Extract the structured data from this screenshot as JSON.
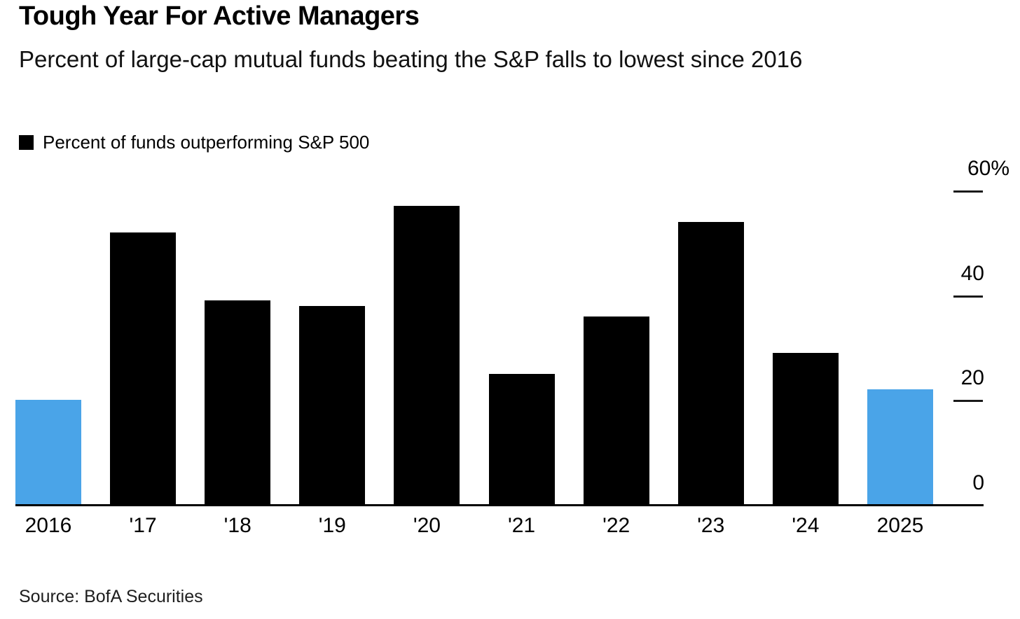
{
  "header": {
    "title": "Tough Year For Active Managers",
    "subtitle": "Percent of large-cap mutual funds beating the S&P falls to lowest since 2016"
  },
  "legend": {
    "label": "Percent of funds outperforming S&P 500",
    "swatch_color": "#000000"
  },
  "chart_data": {
    "type": "bar",
    "title": "Tough Year For Active Managers",
    "subtitle": "Percent of large-cap mutual funds beating the S&P falls to lowest since 2016",
    "legend_entries": [
      "Percent of funds outperforming S&P 500"
    ],
    "legend_position": "top-left",
    "categories": [
      "2016",
      "'17",
      "'18",
      "'19",
      "'20",
      "'21",
      "'22",
      "'23",
      "'24",
      "2025"
    ],
    "values": [
      20,
      52,
      39,
      38,
      57,
      25,
      36,
      54,
      29,
      22
    ],
    "bar_colors": [
      "#4AA4E8",
      "#000000",
      "#000000",
      "#000000",
      "#000000",
      "#000000",
      "#000000",
      "#000000",
      "#000000",
      "#4AA4E8"
    ],
    "default_bar_color": "#000000",
    "highlight_bar_color": "#4AA4E8",
    "xlabel": "",
    "ylabel": "",
    "ylim": [
      0,
      60
    ],
    "y_axis_side": "right",
    "y_ticks": [
      {
        "value": 60,
        "label": "60%"
      },
      {
        "value": 40,
        "label": "40"
      },
      {
        "value": 20,
        "label": "20"
      },
      {
        "value": 0,
        "label": "0"
      }
    ],
    "grid": false
  },
  "footer": {
    "source": "Source: BofA Securities"
  }
}
